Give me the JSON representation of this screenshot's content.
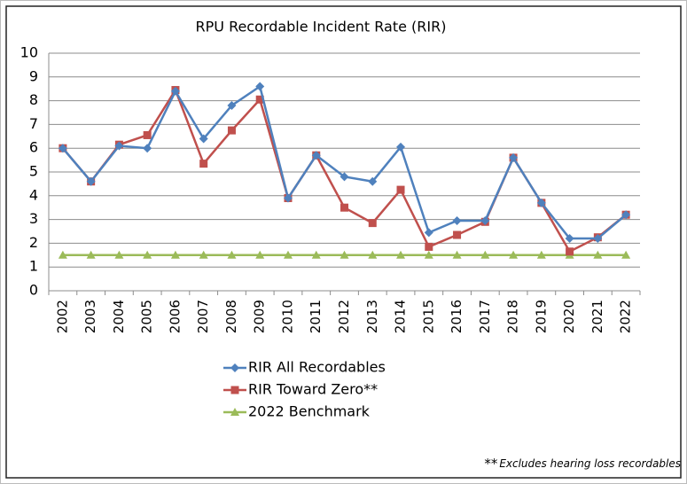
{
  "chart_data": {
    "type": "line",
    "title": "RPU Recordable Incident Rate (RIR)",
    "categories": [
      "2002",
      "2003",
      "2004",
      "2005",
      "2006",
      "2007",
      "2008",
      "2009",
      "2010",
      "2011",
      "2012",
      "2013",
      "2014",
      "2015",
      "2016",
      "2017",
      "2018",
      "2019",
      "2020",
      "2021",
      "2022"
    ],
    "series": [
      {
        "name": "RIR All Recordables",
        "color": "#4f81bd",
        "marker": "diamond",
        "values": [
          6.0,
          4.6,
          6.1,
          6.0,
          8.4,
          6.4,
          7.8,
          8.6,
          3.9,
          5.7,
          4.8,
          4.6,
          6.05,
          2.45,
          2.95,
          2.95,
          5.6,
          3.7,
          2.2,
          2.2,
          3.2
        ]
      },
      {
        "name": "RIR Toward Zero**",
        "color": "#c0504d",
        "marker": "square",
        "values": [
          6.0,
          4.6,
          6.15,
          6.55,
          8.45,
          5.35,
          6.75,
          8.05,
          3.9,
          5.7,
          3.5,
          2.85,
          4.25,
          1.85,
          2.35,
          2.9,
          5.6,
          3.7,
          1.65,
          2.25,
          3.2
        ]
      },
      {
        "name": "2022 Benchmark",
        "color": "#9bbb59",
        "marker": "triangle",
        "values": [
          1.5,
          1.5,
          1.5,
          1.5,
          1.5,
          1.5,
          1.5,
          1.5,
          1.5,
          1.5,
          1.5,
          1.5,
          1.5,
          1.5,
          1.5,
          1.5,
          1.5,
          1.5,
          1.5,
          1.5,
          1.5
        ]
      }
    ],
    "ylim": [
      0,
      10
    ],
    "yticks": [
      0,
      1,
      2,
      3,
      4,
      5,
      6,
      7,
      8,
      9,
      10
    ],
    "grid": true,
    "legend": "bottom",
    "footnote_mark": "**",
    "footnote": "Excludes hearing loss recordables"
  }
}
